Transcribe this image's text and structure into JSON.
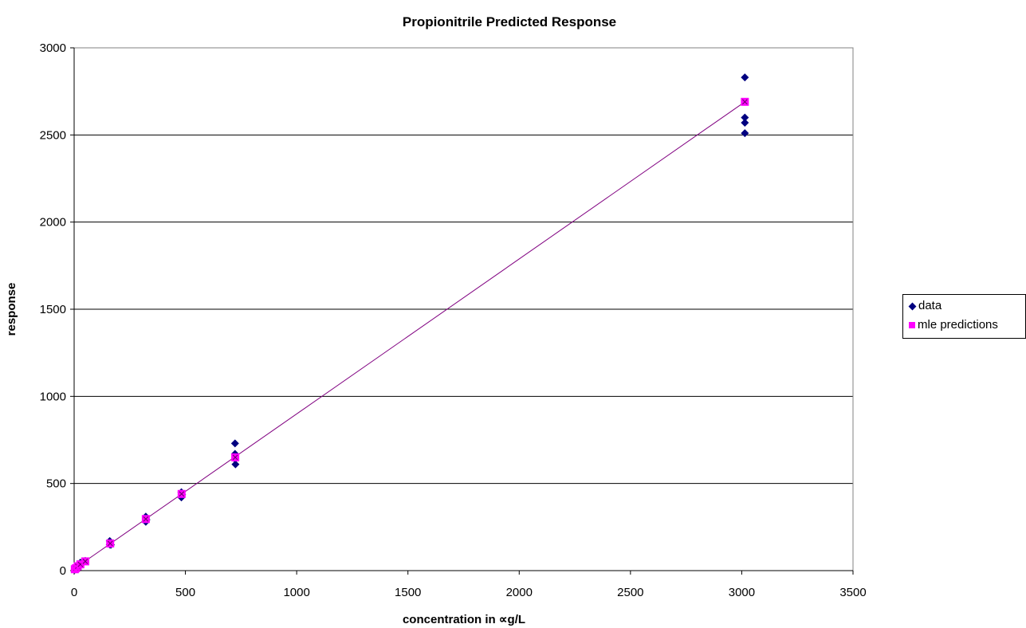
{
  "chart_data": {
    "type": "scatter",
    "title": "Propionitrile Predicted Response",
    "xlabel": "concentration in ∝g/L",
    "ylabel": "response",
    "xlim": [
      0,
      3500
    ],
    "ylim": [
      0,
      3000
    ],
    "x_ticks": [
      "0",
      "500",
      "1000",
      "1500",
      "2000",
      "2500",
      "3000",
      "3500"
    ],
    "y_ticks": [
      "0",
      "500",
      "1000",
      "1500",
      "2000",
      "2500",
      "3000"
    ],
    "grid": "horizontal",
    "legend_position": "right",
    "series": [
      {
        "name": "data",
        "marker": "diamond",
        "color": "#000080",
        "points": [
          [
            3,
            5
          ],
          [
            5,
            12
          ],
          [
            8,
            18
          ],
          [
            10,
            22
          ],
          [
            16,
            30
          ],
          [
            20,
            26
          ],
          [
            25,
            40
          ],
          [
            28,
            46
          ],
          [
            40,
            52
          ],
          [
            50,
            56
          ],
          [
            160,
            170
          ],
          [
            160,
            150
          ],
          [
            165,
            148
          ],
          [
            322,
            310
          ],
          [
            322,
            280
          ],
          [
            325,
            292
          ],
          [
            482,
            450
          ],
          [
            482,
            420
          ],
          [
            485,
            436
          ],
          [
            723,
            730
          ],
          [
            723,
            670
          ],
          [
            723,
            640
          ],
          [
            725,
            610
          ],
          [
            3014,
            2830
          ],
          [
            3014,
            2600
          ],
          [
            3014,
            2570
          ],
          [
            3014,
            2510
          ]
        ]
      },
      {
        "name": "mle predictions",
        "marker": "square",
        "color": "#ff00ff",
        "points": [
          [
            3,
            8
          ],
          [
            8,
            14
          ],
          [
            16,
            25
          ],
          [
            28,
            36
          ],
          [
            50,
            53
          ],
          [
            162,
            156
          ],
          [
            322,
            296
          ],
          [
            483,
            440
          ],
          [
            724,
            650
          ],
          [
            3014,
            2690
          ]
        ]
      }
    ],
    "fit_line": {
      "color": "#800080",
      "points": [
        [
          0,
          10
        ],
        [
          3014,
          2690
        ]
      ]
    }
  }
}
